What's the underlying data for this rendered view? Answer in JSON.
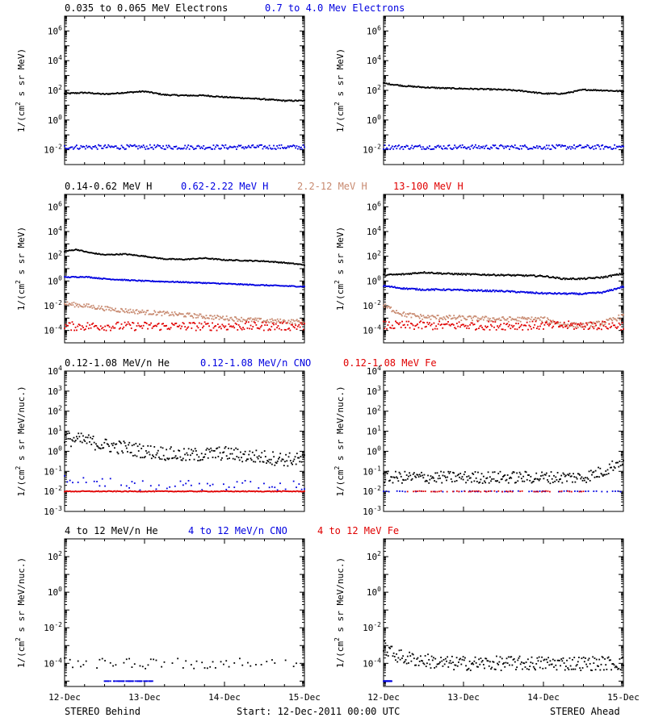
{
  "colors": {
    "black": "#000000",
    "blue": "#0000e0",
    "tan": "#c88a70",
    "red": "#e00000"
  },
  "footer": {
    "left": "STEREO Behind",
    "center": "Start: 12-Dec-2011 00:00 UTC",
    "right": "STEREO Ahead"
  },
  "chart_data": [
    {
      "type": "scatter",
      "panel": "electrons-behind",
      "yscale": "log",
      "ylim": [
        0.001,
        10000000
      ],
      "yticks": [
        "10-2",
        "100",
        "102",
        "104",
        "106"
      ],
      "ylabel": "1/(cm2 s sr MeV)",
      "legend": [
        {
          "label": "0.035 to 0.065 MeV Electrons",
          "color": "black"
        },
        {
          "label": "0.7 to 4.0 Mev Electrons",
          "color": "blue"
        }
      ],
      "series": [
        {
          "color": "black",
          "x": [
            12.0,
            12.25,
            12.5,
            12.75,
            13.0,
            13.25,
            13.5,
            13.75,
            14.0,
            14.25,
            14.5,
            14.75,
            15.0
          ],
          "y": [
            60,
            70,
            55,
            70,
            85,
            50,
            45,
            45,
            35,
            30,
            25,
            20,
            20
          ],
          "scatter": 0.04
        },
        {
          "color": "blue",
          "x": [
            12.0,
            15.0
          ],
          "y": [
            0.015,
            0.015
          ],
          "scatter": 0.15,
          "dense": true
        }
      ]
    },
    {
      "type": "scatter",
      "panel": "electrons-ahead",
      "yscale": "log",
      "ylim": [
        0.001,
        10000000
      ],
      "yticks": [
        "10-2",
        "100",
        "102",
        "104",
        "106"
      ],
      "ylabel": "1/(cm2 s sr MeV)",
      "series": [
        {
          "color": "black",
          "x": [
            12.0,
            12.25,
            12.5,
            12.75,
            13.0,
            13.25,
            13.5,
            13.75,
            14.0,
            14.25,
            14.5,
            14.75,
            15.0
          ],
          "y": [
            300,
            200,
            160,
            140,
            130,
            120,
            110,
            90,
            60,
            60,
            110,
            100,
            85
          ],
          "scatter": 0.04
        },
        {
          "color": "blue",
          "x": [
            12.0,
            15.0
          ],
          "y": [
            0.015,
            0.015
          ],
          "scatter": 0.15,
          "dense": true
        }
      ]
    },
    {
      "type": "scatter",
      "panel": "protons-behind",
      "yscale": "log",
      "ylim": [
        1e-05,
        10000000
      ],
      "yticks": [
        "10-4",
        "10-2",
        "100",
        "102",
        "104",
        "106"
      ],
      "ylabel": "1/(cm2 s sr MeV)",
      "legend": [
        {
          "label": "0.14-0.62 MeV H",
          "color": "black"
        },
        {
          "label": "0.62-2.22 MeV H",
          "color": "blue"
        },
        {
          "label": "2.2-12 MeV H",
          "color": "tan"
        },
        {
          "label": "13-100 MeV H",
          "color": "red"
        }
      ],
      "series": [
        {
          "color": "black",
          "x": [
            12.0,
            12.15,
            12.3,
            12.5,
            12.75,
            13.0,
            13.25,
            13.5,
            13.75,
            14.0,
            14.25,
            14.5,
            14.75,
            15.0
          ],
          "y": [
            250,
            350,
            200,
            130,
            150,
            100,
            60,
            55,
            70,
            50,
            45,
            40,
            30,
            20
          ],
          "scatter": 0.04
        },
        {
          "color": "blue",
          "x": [
            12.0,
            12.25,
            12.5,
            12.75,
            13.0,
            13.5,
            14.0,
            14.5,
            15.0
          ],
          "y": [
            2.0,
            2.2,
            1.5,
            1.2,
            1.0,
            0.8,
            0.6,
            0.45,
            0.35
          ],
          "scatter": 0.04
        },
        {
          "color": "tan",
          "x": [
            12.0,
            12.25,
            12.5,
            12.75,
            13.0,
            13.5,
            14.0,
            14.5,
            15.0
          ],
          "y": [
            0.015,
            0.01,
            0.006,
            0.004,
            0.003,
            0.0018,
            0.001,
            0.0006,
            0.0005
          ],
          "scatter": 0.18
        },
        {
          "color": "red",
          "x": [
            12.0,
            15.0
          ],
          "y": [
            0.00022,
            0.00022
          ],
          "scatter": 0.35,
          "dense": true
        }
      ]
    },
    {
      "type": "scatter",
      "panel": "protons-ahead",
      "yscale": "log",
      "ylim": [
        1e-05,
        10000000
      ],
      "yticks": [
        "10-4",
        "10-2",
        "100",
        "102",
        "104",
        "106"
      ],
      "ylabel": "1/(cm2 s sr MeV)",
      "series": [
        {
          "color": "black",
          "x": [
            12.0,
            12.25,
            12.5,
            12.75,
            13.0,
            13.5,
            14.0,
            14.25,
            14.5,
            14.75,
            15.0
          ],
          "y": [
            3,
            3.5,
            5,
            4,
            3.5,
            3,
            2.5,
            1.5,
            1.5,
            2.0,
            4.0
          ],
          "scatter": 0.06
        },
        {
          "color": "blue",
          "x": [
            12.0,
            12.25,
            12.5,
            12.75,
            13.0,
            13.5,
            14.0,
            14.5,
            14.75,
            15.0
          ],
          "y": [
            0.4,
            0.25,
            0.2,
            0.2,
            0.18,
            0.15,
            0.1,
            0.09,
            0.12,
            0.35
          ],
          "scatter": 0.06
        },
        {
          "color": "tan",
          "x": [
            12.0,
            12.25,
            12.5,
            13.0,
            13.5,
            14.0,
            14.25,
            14.5,
            14.75,
            15.0
          ],
          "y": [
            0.01,
            0.002,
            0.0012,
            0.001,
            0.0008,
            0.0008,
            0.0003,
            0.00025,
            0.0004,
            0.0015
          ],
          "scatter": 0.2
        },
        {
          "color": "red",
          "x": [
            12.0,
            15.0
          ],
          "y": [
            0.00025,
            0.00025
          ],
          "scatter": 0.35,
          "dense": true
        }
      ]
    },
    {
      "type": "scatter",
      "panel": "he-low-behind",
      "yscale": "log",
      "ylim": [
        0.001,
        10000
      ],
      "yticks": [
        "10-3",
        "10-2",
        "10-1",
        "100",
        "101",
        "102",
        "103",
        "104"
      ],
      "ylabel": "1/(cm2 s sr MeV/nuc.)",
      "legend": [
        {
          "label": "0.12-1.08 MeV/n He",
          "color": "black"
        },
        {
          "label": "0.12-1.08 MeV/n CNO",
          "color": "blue"
        },
        {
          "label": "0.12-1.08 MeV Fe",
          "color": "red"
        }
      ],
      "series": [
        {
          "color": "black",
          "x": [
            12.0,
            12.25,
            12.5,
            12.75,
            13.0,
            13.25,
            13.5,
            13.75,
            14.0,
            14.25,
            14.5,
            14.75,
            15.0
          ],
          "y": [
            4,
            3.5,
            2,
            1.5,
            1,
            0.8,
            0.6,
            0.7,
            0.8,
            0.6,
            0.5,
            0.4,
            0.35
          ],
          "scatter": 0.35
        },
        {
          "color": "blue",
          "x": [
            12.0,
            12.8,
            15.0
          ],
          "y": [
            0.04,
            0.02,
            0.02
          ],
          "scatter": 0.25,
          "sparse": true
        },
        {
          "color": "red",
          "x": [
            12.0,
            15.0
          ],
          "y": [
            0.01,
            0.01
          ],
          "scatter": 0.02,
          "dense": true
        }
      ]
    },
    {
      "type": "scatter",
      "panel": "he-low-ahead",
      "yscale": "log",
      "ylim": [
        0.001,
        10000
      ],
      "yticks": [
        "10-3",
        "10-2",
        "10-1",
        "100",
        "101",
        "102",
        "103",
        "104"
      ],
      "ylabel": "1/(cm2 s sr MeV/nuc.)",
      "series": [
        {
          "color": "black",
          "x": [
            12.0,
            12.5,
            13.0,
            13.5,
            14.0,
            14.5,
            14.75,
            15.0
          ],
          "y": [
            0.05,
            0.05,
            0.05,
            0.05,
            0.05,
            0.05,
            0.1,
            0.4
          ],
          "scatter": 0.3
        },
        {
          "color": "blue",
          "x": [
            12.0,
            15.0
          ],
          "y": [
            0.01,
            0.01
          ],
          "scatter": 0.02,
          "sparse": true
        },
        {
          "color": "red",
          "x": [
            12.3,
            14.5
          ],
          "y": [
            0.01,
            0.01
          ],
          "scatter": 0.02,
          "sparse": true
        }
      ]
    },
    {
      "type": "scatter",
      "panel": "he-high-behind",
      "yscale": "log",
      "ylim": [
        5e-06,
        1000
      ],
      "yticks": [
        "10-4",
        "10-2",
        "100",
        "102"
      ],
      "ylabel": "1/(cm2 s sr MeV/nuc.)",
      "legend": [
        {
          "label": "4 to 12 MeV/n He",
          "color": "black"
        },
        {
          "label": "4 to 12 MeV/n CNO",
          "color": "blue"
        },
        {
          "label": "4 to 12 MeV Fe",
          "color": "red"
        }
      ],
      "series": [
        {
          "color": "black",
          "x": [
            12.0,
            15.0
          ],
          "y": [
            0.0001,
            0.0001
          ],
          "scatter": 0.3,
          "sparse": true
        },
        {
          "color": "blue",
          "x": [
            12.5,
            13.1
          ],
          "y": [
            1e-05,
            1e-05
          ],
          "scatter": 0.0,
          "sparse": true
        }
      ]
    },
    {
      "type": "scatter",
      "panel": "he-high-ahead",
      "yscale": "log",
      "ylim": [
        5e-06,
        1000
      ],
      "yticks": [
        "10-4",
        "10-2",
        "100",
        "102"
      ],
      "ylabel": "1/(cm2 s sr MeV/nuc.)",
      "series": [
        {
          "color": "black",
          "x": [
            12.0,
            12.1,
            12.25,
            12.5,
            12.75,
            15.0
          ],
          "y": [
            0.0008,
            0.0004,
            0.0002,
            0.00015,
            0.0001,
            0.0001
          ],
          "scatter": 0.4
        },
        {
          "color": "blue",
          "x": [
            12.0,
            12.1
          ],
          "y": [
            1e-05,
            1e-05
          ],
          "scatter": 0.0,
          "sparse": true
        }
      ]
    }
  ],
  "xaxis": {
    "ticks": [
      "12-Dec",
      "13-Dec",
      "14-Dec",
      "15-Dec"
    ],
    "range": [
      12,
      15
    ]
  }
}
